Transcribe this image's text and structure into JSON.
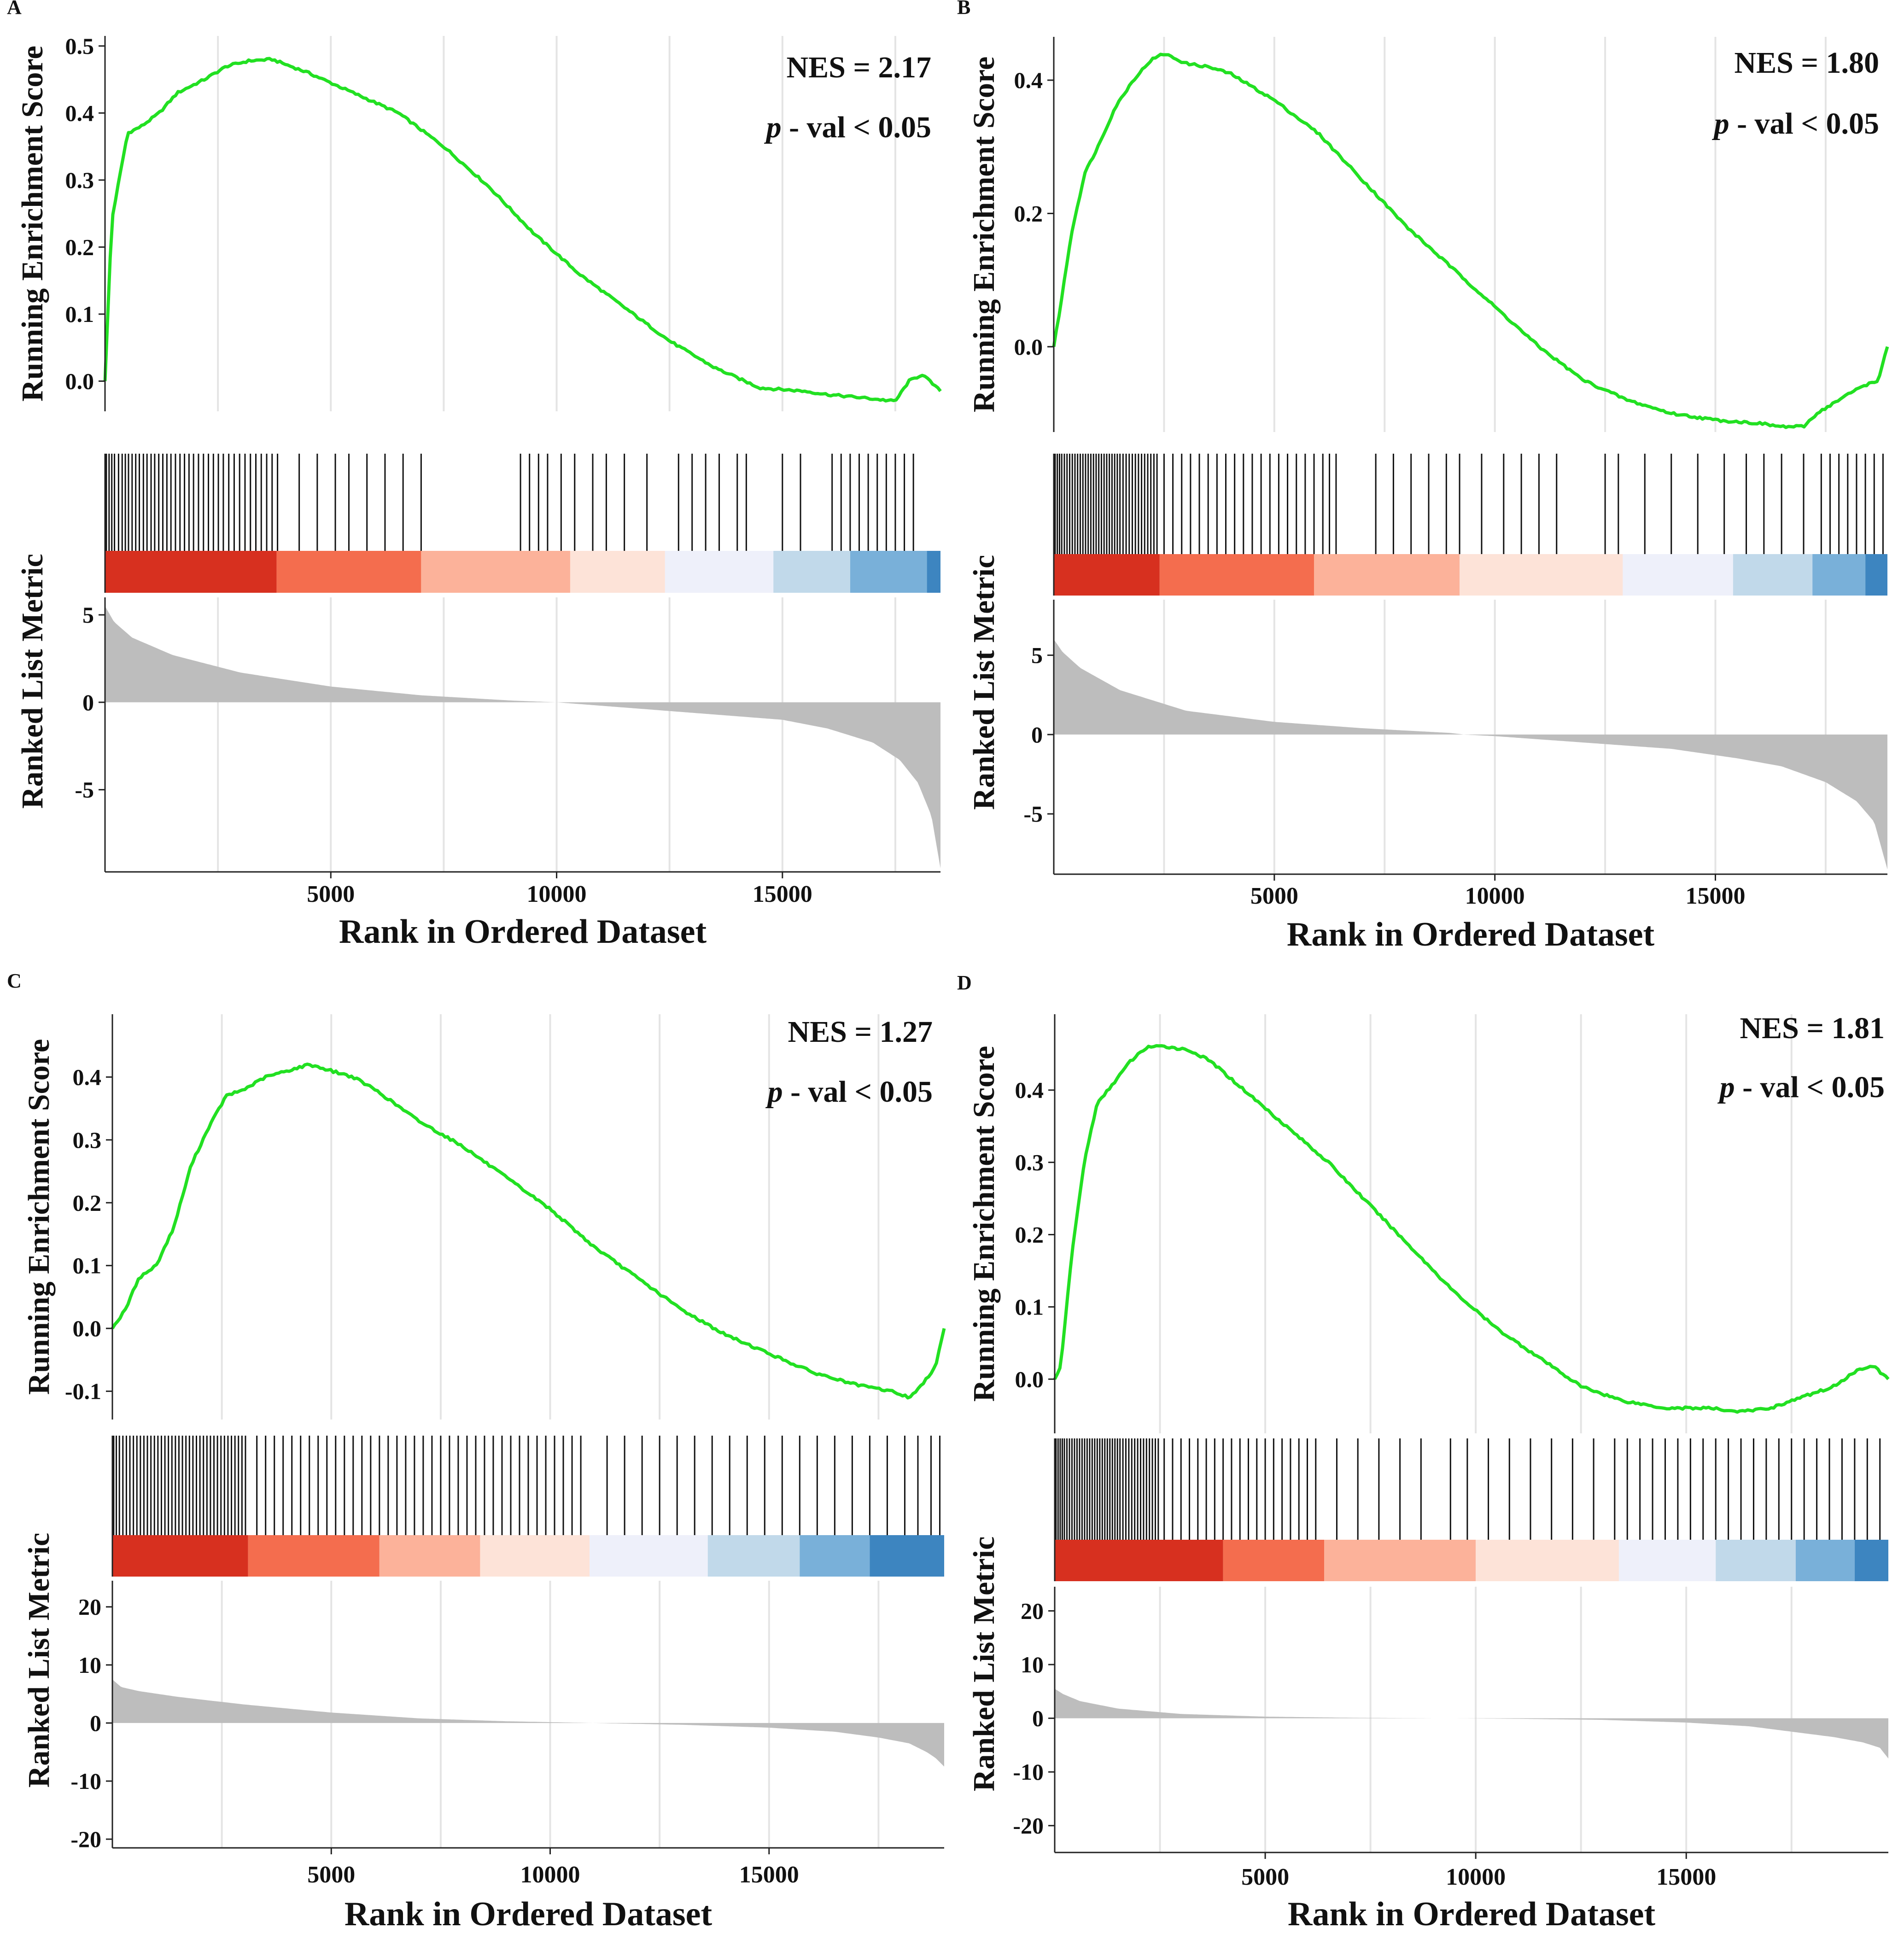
{
  "figure_title": "GSEA enrichment plots (four panels)",
  "colors": {
    "curve": "#22e022",
    "hits": "#111111",
    "metric_fill": "#bdbdbd",
    "gridline": "#e4e4e4",
    "axis": "#222222",
    "band": [
      "#d7301f",
      "#f46d4e",
      "#fcb29a",
      "#fde3d8",
      "#eef0fa",
      "#c1d9ea",
      "#79b0d9",
      "#3d85c0"
    ]
  },
  "chart_data": [
    {
      "panel_label": "A",
      "type": "line",
      "title": "",
      "nes_text": "NES = 2.17",
      "p_italic": "p",
      "p_rest": " - val < 0.05",
      "xlabel": "Rank in Ordered Dataset",
      "ylabel_top": "Running Enrichment Score",
      "ylabel_bottom": "Ranked List Metric",
      "xlim": [
        0,
        18500
      ],
      "xticks": [
        5000,
        10000,
        15000
      ],
      "xtick_labels": [
        "5000",
        "10000",
        "15000"
      ],
      "es_ylim": [
        -0.045,
        0.515
      ],
      "es_yticks": [
        0.0,
        0.1,
        0.2,
        0.3,
        0.4,
        0.5
      ],
      "es_ytick_labels": [
        "0.0",
        "0.1",
        "0.2",
        "0.3",
        "0.4",
        "0.5"
      ],
      "es_x": [
        0,
        150,
        500,
        800,
        1200,
        1600,
        2200,
        2700,
        3200,
        3700,
        4500,
        5500,
        6500,
        7500,
        8500,
        9500,
        10500,
        11500,
        12500,
        13500,
        14500,
        15500,
        16000,
        16800,
        17500,
        17800,
        18100,
        18500
      ],
      "es_y": [
        0.0,
        0.24,
        0.37,
        0.38,
        0.4,
        0.43,
        0.45,
        0.47,
        0.478,
        0.48,
        0.46,
        0.43,
        0.4,
        0.35,
        0.29,
        0.22,
        0.16,
        0.11,
        0.06,
        0.02,
        -0.01,
        -0.015,
        -0.02,
        -0.025,
        -0.03,
        0.0,
        0.01,
        -0.015
      ],
      "metric_ylim": [
        -9.7,
        6.0
      ],
      "metric_yticks": [
        -5,
        0,
        5
      ],
      "metric_ytick_labels": [
        "-5",
        "0",
        "5"
      ],
      "metric_x": [
        0,
        200,
        600,
        1500,
        3000,
        5000,
        7000,
        9000,
        10000,
        11000,
        13000,
        15000,
        16000,
        17000,
        17600,
        18000,
        18300,
        18500
      ],
      "metric_y": [
        5.5,
        4.6,
        3.7,
        2.7,
        1.7,
        0.9,
        0.4,
        0.1,
        0.0,
        -0.2,
        -0.6,
        -1.0,
        -1.5,
        -2.3,
        -3.3,
        -4.6,
        -6.5,
        -9.5
      ],
      "hits": [
        30,
        90,
        150,
        210,
        300,
        380,
        450,
        520,
        600,
        680,
        760,
        850,
        930,
        1020,
        1100,
        1190,
        1280,
        1370,
        1460,
        1560,
        1660,
        1760,
        1860,
        1960,
        2070,
        2180,
        2290,
        2400,
        2510,
        2620,
        2740,
        2860,
        2980,
        3100,
        3220,
        3340,
        3460,
        3580,
        3700,
        3820,
        4300,
        4700,
        5100,
        5400,
        5800,
        6200,
        6600,
        7000,
        9200,
        9400,
        9600,
        9800,
        10100,
        10400,
        10800,
        11100,
        11500,
        12000,
        12700,
        13000,
        13300,
        13600,
        14000,
        14200,
        15000,
        15400,
        16100,
        16300,
        16500,
        16700,
        16900,
        17100,
        17300,
        17500,
        17700,
        17900
      ],
      "band_bounds": [
        0,
        3800,
        7000,
        10300,
        12400,
        14800,
        16500,
        18200,
        18500
      ]
    },
    {
      "panel_label": "B",
      "type": "line",
      "title": "",
      "nes_text": "NES = 1.80",
      "p_italic": "p",
      "p_rest": " - val < 0.05",
      "xlabel": "Rank in Ordered Dataset",
      "ylabel_top": "Running Enrichment Score",
      "ylabel_bottom": "Ranked List Metric",
      "xlim": [
        0,
        18900
      ],
      "xticks": [
        5000,
        10000,
        15000
      ],
      "xtick_labels": [
        "5000",
        "10000",
        "15000"
      ],
      "es_ylim": [
        -0.128,
        0.465
      ],
      "es_yticks": [
        0.0,
        0.2,
        0.4
      ],
      "es_ytick_labels": [
        "0.0",
        "0.2",
        "0.4"
      ],
      "es_x": [
        0,
        150,
        400,
        700,
        1000,
        1400,
        1800,
        2200,
        2500,
        3000,
        3500,
        4000,
        5000,
        6000,
        7000,
        8000,
        9000,
        10000,
        11000,
        12000,
        13000,
        14000,
        15000,
        16000,
        16500,
        17000,
        17300,
        17800,
        18300,
        18700,
        18900
      ],
      "es_y": [
        0.0,
        0.06,
        0.17,
        0.26,
        0.3,
        0.36,
        0.4,
        0.43,
        0.44,
        0.425,
        0.42,
        0.41,
        0.37,
        0.32,
        0.25,
        0.18,
        0.12,
        0.06,
        0.0,
        -0.05,
        -0.08,
        -0.1,
        -0.11,
        -0.115,
        -0.12,
        -0.12,
        -0.1,
        -0.08,
        -0.06,
        -0.05,
        0.0
      ],
      "metric_ylim": [
        -8.8,
        8.5
      ],
      "metric_yticks": [
        -5,
        0,
        5
      ],
      "metric_ytick_labels": [
        "-5",
        "0",
        "5"
      ],
      "metric_x": [
        0,
        200,
        600,
        1500,
        3000,
        5000,
        7000,
        9000,
        9300,
        10000,
        12000,
        14000,
        15500,
        16500,
        17500,
        18200,
        18600,
        18900
      ],
      "metric_y": [
        6.0,
        5.2,
        4.2,
        2.8,
        1.5,
        0.8,
        0.4,
        0.1,
        0.0,
        -0.1,
        -0.5,
        -0.9,
        -1.5,
        -2.0,
        -3.0,
        -4.2,
        -5.5,
        -8.5
      ],
      "hits": [
        30,
        80,
        130,
        180,
        240,
        300,
        360,
        420,
        480,
        540,
        600,
        660,
        720,
        780,
        840,
        900,
        960,
        1020,
        1080,
        1140,
        1200,
        1260,
        1320,
        1380,
        1440,
        1500,
        1570,
        1640,
        1710,
        1780,
        1850,
        1920,
        1990,
        2060,
        2130,
        2200,
        2270,
        2340,
        2500,
        2700,
        2900,
        3100,
        3300,
        3500,
        3700,
        3900,
        4100,
        4300,
        4500,
        4700,
        4900,
        5100,
        5300,
        5500,
        5700,
        5900,
        6100,
        6250,
        6400,
        7300,
        7700,
        8100,
        8500,
        8900,
        9200,
        9700,
        10200,
        10600,
        11000,
        11400,
        12500,
        12800,
        13400,
        14000,
        14600,
        15200,
        15700,
        16100,
        16500,
        17000,
        17400,
        17600,
        17800,
        18000,
        18200,
        18400,
        18600,
        18800
      ],
      "band_bounds": [
        0,
        2400,
        5900,
        9200,
        12900,
        15400,
        17200,
        18400,
        18900
      ]
    },
    {
      "panel_label": "C",
      "type": "line",
      "title": "",
      "nes_text": "NES = 1.27",
      "p_italic": "p",
      "p_rest": " - val < 0.05",
      "xlabel": "Rank in Ordered Dataset",
      "ylabel_top": "Running Enrichment Score",
      "ylabel_bottom": "Ranked List Metric",
      "xlim": [
        0,
        19000
      ],
      "xticks": [
        5000,
        10000,
        15000
      ],
      "xtick_labels": [
        "5000",
        "10000",
        "15000"
      ],
      "es_ylim": [
        -0.145,
        0.5
      ],
      "es_yticks": [
        -0.1,
        0.0,
        0.1,
        0.2,
        0.3,
        0.4
      ],
      "es_ytick_labels": [
        "-0.1",
        "0.0",
        "0.1",
        "0.2",
        "0.3",
        "0.4"
      ],
      "es_x": [
        0,
        300,
        600,
        1000,
        1400,
        1800,
        2200,
        2600,
        3000,
        3500,
        4000,
        4500,
        5000,
        5500,
        6000,
        7000,
        8000,
        9000,
        10000,
        11000,
        12000,
        13000,
        14000,
        15000,
        16000,
        17000,
        17800,
        18200,
        18500,
        18800,
        19000
      ],
      "es_y": [
        0.0,
        0.03,
        0.08,
        0.1,
        0.16,
        0.26,
        0.32,
        0.37,
        0.38,
        0.4,
        0.41,
        0.42,
        0.41,
        0.4,
        0.38,
        0.33,
        0.29,
        0.24,
        0.19,
        0.13,
        0.08,
        0.03,
        -0.01,
        -0.04,
        -0.07,
        -0.09,
        -0.1,
        -0.11,
        -0.09,
        -0.06,
        0.0
      ],
      "metric_ylim": [
        -21.5,
        24.5
      ],
      "metric_yticks": [
        -20,
        -10,
        0,
        10,
        20
      ],
      "metric_ytick_labels": [
        "-20",
        "-10",
        "0",
        "10",
        "20"
      ],
      "metric_x": [
        0,
        200,
        600,
        1500,
        3000,
        5000,
        7000,
        9000,
        11000,
        13000,
        15000,
        16500,
        17500,
        18200,
        18600,
        18800,
        19000
      ],
      "metric_y": [
        7.5,
        6.2,
        5.5,
        4.5,
        3.2,
        1.8,
        0.8,
        0.3,
        0.0,
        -0.3,
        -0.8,
        -1.5,
        -2.5,
        -3.5,
        -5.0,
        -6.0,
        -7.5
      ],
      "hits": [
        30,
        90,
        160,
        240,
        320,
        400,
        480,
        560,
        640,
        720,
        800,
        880,
        960,
        1040,
        1120,
        1200,
        1280,
        1360,
        1440,
        1520,
        1600,
        1680,
        1760,
        1840,
        1920,
        2000,
        2080,
        2160,
        2240,
        2320,
        2400,
        2480,
        2560,
        2640,
        2720,
        2800,
        2880,
        2960,
        3040,
        3300,
        3500,
        3700,
        3900,
        4100,
        4300,
        4500,
        4700,
        4900,
        5100,
        5300,
        5500,
        5700,
        5900,
        6100,
        6300,
        6500,
        6700,
        6900,
        7100,
        7300,
        7500,
        7700,
        7900,
        8100,
        8300,
        8500,
        8700,
        8900,
        9100,
        9300,
        9500,
        9700,
        9900,
        10100,
        10300,
        10500,
        10700,
        11300,
        11700,
        12100,
        12500,
        12900,
        13300,
        13700,
        14100,
        14500,
        14900,
        15300,
        15700,
        16100,
        16500,
        16900,
        17300,
        17700,
        18100,
        18400,
        18700,
        18900
      ],
      "band_bounds": [
        0,
        3100,
        6100,
        8400,
        10900,
        13600,
        15700,
        17300,
        19000
      ]
    },
    {
      "panel_label": "D",
      "type": "line",
      "title": "",
      "nes_text": "NES = 1.81",
      "p_italic": "p",
      "p_rest": " - val < 0.05",
      "xlabel": "Rank in Ordered Dataset",
      "ylabel_top": "Running Enrichment Score",
      "ylabel_bottom": "Ranked List Metric",
      "xlim": [
        0,
        19800
      ],
      "xticks": [
        5000,
        10000,
        15000
      ],
      "xtick_labels": [
        "5000",
        "10000",
        "15000"
      ],
      "es_ylim": [
        -0.075,
        0.505
      ],
      "es_yticks": [
        0.0,
        0.1,
        0.2,
        0.3,
        0.4
      ],
      "es_ytick_labels": [
        "0.0",
        "0.1",
        "0.2",
        "0.3",
        "0.4"
      ],
      "es_x": [
        0,
        150,
        400,
        700,
        1000,
        1400,
        1800,
        2200,
        2700,
        3200,
        3700,
        4500,
        5500,
        6500,
        7500,
        8500,
        9500,
        10500,
        11500,
        12500,
        13500,
        14500,
        15500,
        16300,
        17000,
        17500,
        18000,
        18500,
        19000,
        19400,
        19800
      ],
      "es_y": [
        0.0,
        0.02,
        0.17,
        0.3,
        0.38,
        0.41,
        0.44,
        0.46,
        0.46,
        0.455,
        0.44,
        0.4,
        0.35,
        0.3,
        0.24,
        0.18,
        0.12,
        0.07,
        0.03,
        -0.01,
        -0.03,
        -0.04,
        -0.04,
        -0.045,
        -0.04,
        -0.03,
        -0.02,
        -0.01,
        0.01,
        0.02,
        0.0
      ],
      "metric_ylim": [
        -25,
        24.5
      ],
      "metric_yticks": [
        -20,
        -10,
        0,
        10,
        20
      ],
      "metric_ytick_labels": [
        "-20",
        "-10",
        "0",
        "10",
        "20"
      ],
      "metric_x": [
        0,
        200,
        600,
        1500,
        3000,
        5000,
        7000,
        9000,
        9500,
        11000,
        13000,
        15000,
        16500,
        17500,
        18500,
        19200,
        19600,
        19800
      ],
      "metric_y": [
        5.5,
        4.5,
        3.2,
        1.8,
        0.8,
        0.3,
        0.1,
        0.0,
        0.0,
        -0.1,
        -0.3,
        -0.8,
        -1.5,
        -2.5,
        -3.5,
        -4.5,
        -5.5,
        -7.5
      ],
      "hits": [
        30,
        80,
        130,
        180,
        230,
        290,
        350,
        410,
        470,
        530,
        590,
        650,
        710,
        770,
        830,
        890,
        950,
        1010,
        1070,
        1130,
        1190,
        1250,
        1310,
        1370,
        1430,
        1490,
        1550,
        1620,
        1690,
        1760,
        1830,
        1900,
        1970,
        2040,
        2110,
        2180,
        2250,
        2320,
        2390,
        2460,
        2600,
        2800,
        3000,
        3200,
        3400,
        3600,
        3800,
        4000,
        4200,
        4400,
        4600,
        4800,
        5000,
        5200,
        5400,
        5600,
        5800,
        6000,
        6200,
        6700,
        7200,
        7700,
        8200,
        8700,
        9400,
        9800,
        10300,
        10800,
        11300,
        11800,
        12300,
        12800,
        13300,
        13600,
        13900,
        14200,
        14500,
        14800,
        15100,
        15400,
        15700,
        16000,
        16300,
        16600,
        16900,
        17200,
        17500,
        17800,
        18100,
        18400,
        18700,
        19000,
        19300,
        19600
      ],
      "band_bounds": [
        0,
        4000,
        6400,
        10000,
        13400,
        15700,
        17600,
        19000,
        19800
      ]
    }
  ]
}
